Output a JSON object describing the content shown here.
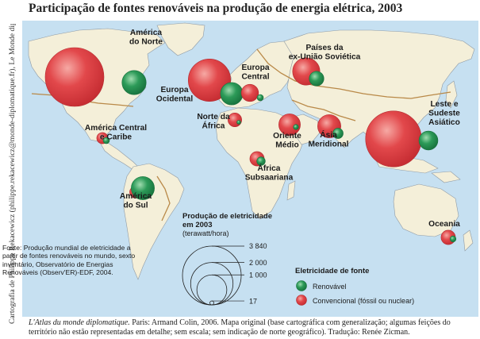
{
  "title": "Participação de fontes renováveis na produção de energia elétrica, 2003",
  "side_credit": "Cartografia de Philippe Rekacewicz (philippe.rekacewicz@monde-diplomatique.fr), Le Monde diplomatique, Paris",
  "colors": {
    "ocean": "#c6e0f1",
    "land": "#f4efd9",
    "land_stroke": "#8f9aa4",
    "border": "#b98948",
    "renewable": "#1f8f4e",
    "conventional": "#dc3a3e"
  },
  "regions": [
    {
      "label": [
        "América",
        "do Norte"
      ],
      "renewable_twh": 650,
      "conventional_twh": 3840
    },
    {
      "label": [
        "Europa",
        "Ocidental"
      ],
      "renewable_twh": 560,
      "conventional_twh": 2000
    },
    {
      "label": [
        "Europa",
        "Central"
      ],
      "renewable_twh": 45,
      "conventional_twh": 330
    },
    {
      "label": [
        "Países da",
        "ex-União Soviética"
      ],
      "renewable_twh": 240,
      "conventional_twh": 830
    },
    {
      "label": [
        "América Central",
        "e Caribe"
      ],
      "renewable_twh": 45,
      "conventional_twh": 140
    },
    {
      "label": [
        "Norte da",
        "África"
      ],
      "renewable_twh": 17,
      "conventional_twh": 210
    },
    {
      "label": [
        "Oriente",
        "Médio"
      ],
      "renewable_twh": 30,
      "conventional_twh": 520
    },
    {
      "label": [
        "Ásia",
        "Meridional"
      ],
      "renewable_twh": 120,
      "conventional_twh": 600
    },
    {
      "label": [
        "Leste e",
        "Sudeste",
        "Asiático"
      ],
      "renewable_twh": 400,
      "conventional_twh": 3480
    },
    {
      "label": [
        "África",
        "Subsaariana"
      ],
      "renewable_twh": 80,
      "conventional_twh": 230
    },
    {
      "label": [
        "América",
        "do Sul"
      ],
      "renewable_twh": 600,
      "conventional_twh": 160
    },
    {
      "label": [
        "Oceania"
      ],
      "renewable_twh": 40,
      "conventional_twh": 230
    }
  ],
  "legend": {
    "size_title": [
      "Produção de eletricidade",
      "em 2003"
    ],
    "size_unit": "(terawatt/hora)",
    "size_values": [
      {
        "label": "3 840",
        "value": 3840
      },
      {
        "label": "2 000",
        "value": 2000
      },
      {
        "label": "1 000",
        "value": 1000
      },
      {
        "label": "17",
        "value": 17
      }
    ],
    "color_title": "Eletricidade de fonte",
    "renewable_label": "Renovável",
    "conventional_label": "Convencional (fóssil ou nuclear)"
  },
  "source_note": "Fonte: Produção mundial de eletricidade a partir de fontes renováveis no mundo, sexto inventário, Observatório de Energias Renováveis (Observ'ER)-EDF, 2004.",
  "footer": {
    "book": "L'Atlas du monde diplomatique.",
    "rest": " Paris: Armand Colin, 2006. Mapa original (base cartográfica com generalização; algumas feições do território não estão representadas em detalhe; sem escala; sem indicação de norte geográfico). Tradução: Renée Zicman."
  }
}
